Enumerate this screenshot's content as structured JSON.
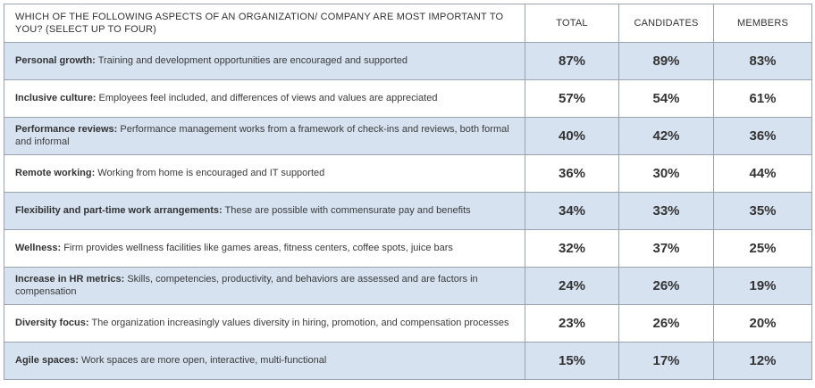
{
  "question": "WHICH OF THE FOLLOWING ASPECTS OF AN ORGANIZATION/ COMPANY ARE MOST IMPORTANT TO YOU? (SELECT UP TO FOUR)",
  "columns": [
    "TOTAL",
    "CANDIDATES",
    "MEMBERS"
  ],
  "colors": {
    "shaded_row": "#d6e2f0",
    "border": "#9aa3ad"
  },
  "rows": [
    {
      "title": "Personal growth:",
      "desc": " Training and development opportunities are encouraged and supported",
      "values": [
        "87%",
        "89%",
        "83%"
      ],
      "shaded": true
    },
    {
      "title": "Inclusive culture:",
      "desc": " Employees feel included, and differences of views and values are appreciated",
      "values": [
        "57%",
        "54%",
        "61%"
      ],
      "shaded": false
    },
    {
      "title": "Performance reviews:",
      "desc": " Performance management works from a framework of check-ins and reviews, both formal and informal",
      "values": [
        "40%",
        "42%",
        "36%"
      ],
      "shaded": true
    },
    {
      "title": "Remote working:",
      "desc": " Working from home is encouraged and IT supported",
      "values": [
        "36%",
        "30%",
        "44%"
      ],
      "shaded": false
    },
    {
      "title": "Flexibility and part-time work arrangements:",
      "desc": " These are possible with commensurate pay and benefits",
      "values": [
        "34%",
        "33%",
        "35%"
      ],
      "shaded": true
    },
    {
      "title": "Wellness:",
      "desc": " Firm provides wellness facilities like games areas, fitness centers, coffee spots, juice bars",
      "values": [
        "32%",
        "37%",
        "25%"
      ],
      "shaded": false
    },
    {
      "title": "Increase in HR metrics:",
      "desc": " Skills, competencies, productivity, and behaviors are assessed and are factors in compensation",
      "values": [
        "24%",
        "26%",
        "19%"
      ],
      "shaded": true
    },
    {
      "title": "Diversity focus:",
      "desc": " The organization increasingly values diversity in hiring, promotion, and compensation processes",
      "values": [
        "23%",
        "26%",
        "20%"
      ],
      "shaded": false
    },
    {
      "title": "Agile spaces:",
      "desc": " Work spaces are more open, interactive, multi-functional",
      "values": [
        "15%",
        "17%",
        "12%"
      ],
      "shaded": true
    }
  ],
  "chart_data": {
    "type": "table",
    "title": "WHICH OF THE FOLLOWING ASPECTS OF AN ORGANIZATION/ COMPANY ARE MOST IMPORTANT TO YOU? (SELECT UP TO FOUR)",
    "categories": [
      "Personal growth",
      "Inclusive culture",
      "Performance reviews",
      "Remote working",
      "Flexibility and part-time work arrangements",
      "Wellness",
      "Increase in HR metrics",
      "Diversity focus",
      "Agile spaces"
    ],
    "series": [
      {
        "name": "TOTAL",
        "values": [
          87,
          57,
          40,
          36,
          34,
          32,
          24,
          23,
          15
        ]
      },
      {
        "name": "CANDIDATES",
        "values": [
          89,
          54,
          42,
          30,
          33,
          37,
          26,
          26,
          17
        ]
      },
      {
        "name": "MEMBERS",
        "values": [
          83,
          61,
          36,
          44,
          35,
          25,
          19,
          20,
          12
        ]
      }
    ]
  }
}
